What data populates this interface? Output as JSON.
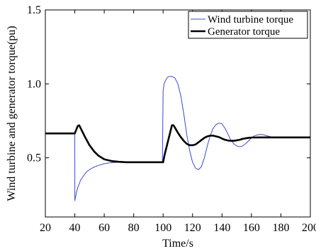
{
  "chart_data": {
    "type": "line",
    "title": "",
    "xlabel": "Time/s",
    "ylabel": "Wind turbine and generator torque(pu)",
    "xlim": [
      20,
      200
    ],
    "ylim": [
      0.1,
      1.5
    ],
    "xticks": [
      20,
      40,
      60,
      80,
      100,
      120,
      140,
      160,
      180,
      200
    ],
    "yticks": [
      0.5,
      1.0,
      1.5
    ],
    "xtick_labels": [
      "20",
      "40",
      "60",
      "80",
      "100",
      "120",
      "140",
      "160",
      "180",
      "200"
    ],
    "ytick_labels": [
      "0.5",
      "1.0",
      "1.5"
    ],
    "grid": false,
    "legend_position": "top-right",
    "series": [
      {
        "name": "Wind turbine torque",
        "color": "#3b4bbf",
        "x": [
          20,
          40,
          40.05,
          40.8,
          42,
          44,
          46,
          48,
          50,
          52,
          55,
          58,
          60,
          63,
          66,
          70,
          75,
          80,
          85,
          90,
          95,
          99.5,
          100,
          100.6,
          102,
          103,
          104,
          106,
          108,
          110,
          112,
          114,
          116,
          118,
          120,
          122,
          124,
          126,
          128,
          130,
          132,
          134,
          136,
          138,
          140,
          142,
          144,
          146,
          148,
          150,
          152,
          154,
          156,
          158,
          160,
          162,
          164,
          166,
          168,
          170,
          172,
          174,
          176,
          180,
          190,
          200
        ],
        "y": [
          0.665,
          0.665,
          0.21,
          0.25,
          0.3,
          0.35,
          0.38,
          0.405,
          0.42,
          0.432,
          0.445,
          0.455,
          0.46,
          0.465,
          0.468,
          0.47,
          0.47,
          0.47,
          0.47,
          0.47,
          0.47,
          0.47,
          0.95,
          1.0,
          1.03,
          1.045,
          1.05,
          1.05,
          1.04,
          1.0,
          0.92,
          0.8,
          0.66,
          0.55,
          0.47,
          0.43,
          0.42,
          0.44,
          0.5,
          0.58,
          0.65,
          0.7,
          0.725,
          0.735,
          0.73,
          0.7,
          0.66,
          0.62,
          0.595,
          0.58,
          0.575,
          0.58,
          0.595,
          0.615,
          0.635,
          0.648,
          0.655,
          0.658,
          0.656,
          0.65,
          0.645,
          0.64,
          0.638,
          0.638,
          0.638,
          0.638
        ]
      },
      {
        "name": "Generator torque",
        "color": "#000000",
        "x": [
          20,
          40,
          41,
          42,
          43,
          45,
          47,
          50,
          53,
          56,
          60,
          65,
          70,
          75,
          80,
          85,
          90,
          95,
          100,
          101,
          103,
          105,
          106,
          107,
          108,
          110,
          112,
          114,
          116,
          118,
          120,
          122,
          124,
          126,
          128,
          130,
          132,
          134,
          136,
          138,
          140,
          142,
          144,
          146,
          148,
          150,
          152,
          154,
          156,
          158,
          160,
          165,
          170,
          180,
          190,
          200
        ],
        "y": [
          0.665,
          0.665,
          0.69,
          0.715,
          0.72,
          0.68,
          0.64,
          0.585,
          0.545,
          0.515,
          0.49,
          0.478,
          0.473,
          0.47,
          0.47,
          0.47,
          0.47,
          0.47,
          0.47,
          0.52,
          0.6,
          0.68,
          0.72,
          0.72,
          0.705,
          0.67,
          0.64,
          0.615,
          0.595,
          0.585,
          0.585,
          0.59,
          0.605,
          0.62,
          0.635,
          0.645,
          0.65,
          0.65,
          0.645,
          0.64,
          0.63,
          0.622,
          0.617,
          0.615,
          0.615,
          0.618,
          0.622,
          0.628,
          0.632,
          0.635,
          0.637,
          0.638,
          0.638,
          0.638,
          0.638,
          0.638
        ]
      }
    ]
  }
}
